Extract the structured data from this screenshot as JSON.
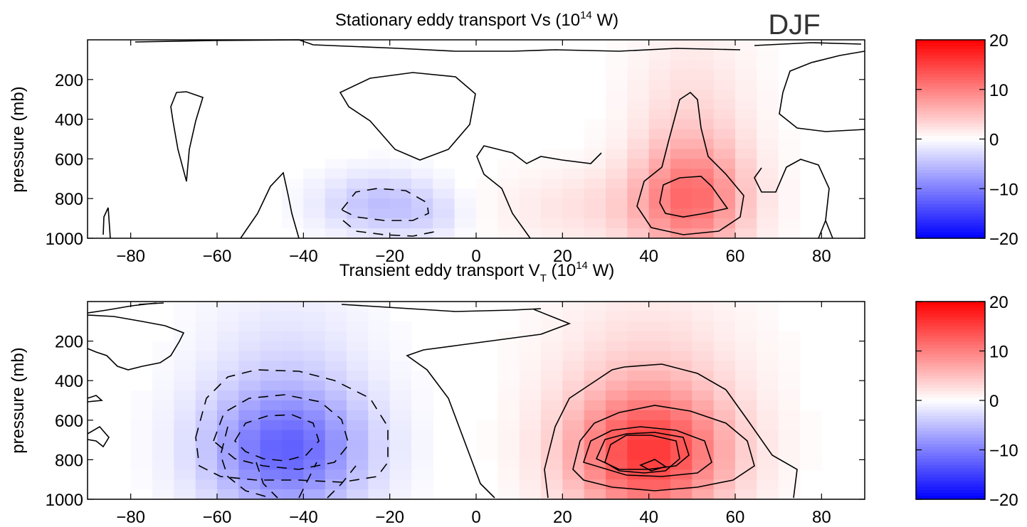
{
  "figure_label": "DJF",
  "colormap": {
    "negative": "#0000ff",
    "zero": "#ffffff",
    "positive": "#ff0000"
  },
  "chart_data": [
    {
      "type": "heatmap",
      "title_main": "Stationary eddy transport Vs (10",
      "title_sup": "14",
      "title_end": " W)",
      "ylabel": "pressure (mb)",
      "xlim": [
        -90,
        90
      ],
      "ylim": [
        0,
        1000
      ],
      "y_inverted": true,
      "xticks": [
        -80,
        -60,
        -40,
        -20,
        0,
        20,
        40,
        60,
        80
      ],
      "yticks": [
        200,
        400,
        600,
        800,
        1000
      ],
      "colorbar": {
        "min": -20,
        "max": 20,
        "ticks": [
          20,
          10,
          0,
          -10,
          -20
        ]
      },
      "blobs": [
        {
          "lat": 50,
          "p": 800,
          "sx": 9,
          "sy": 210,
          "amp": 10
        },
        {
          "lat": 50,
          "p": 350,
          "sx": 10,
          "sy": 300,
          "amp": 2.5
        },
        {
          "lat": 30,
          "p": 850,
          "sx": 18,
          "sy": 140,
          "amp": 2.5
        },
        {
          "lat": -22,
          "p": 830,
          "sx": 10,
          "sy": 110,
          "amp": -5
        },
        {
          "lat": -10,
          "p": 900,
          "sx": 6,
          "sy": 80,
          "amp": -1.5
        }
      ]
    },
    {
      "type": "heatmap",
      "title_main": "Transient eddy transport V",
      "title_sub": "T",
      "title_mid": " (10",
      "title_sup": "14",
      "title_end": " W)",
      "ylabel": "pressure (mb)",
      "xlim": [
        -90,
        90
      ],
      "ylim": [
        0,
        1000
      ],
      "y_inverted": true,
      "xticks": [
        -80,
        -60,
        -40,
        -20,
        0,
        20,
        40,
        60,
        80
      ],
      "yticks": [
        200,
        400,
        600,
        800,
        1000
      ],
      "colorbar": {
        "min": -20,
        "max": 20,
        "ticks": [
          20,
          10,
          0,
          -10,
          -20
        ]
      },
      "blobs": [
        {
          "lat": 40,
          "p": 780,
          "sx": 13,
          "sy": 230,
          "amp": 14
        },
        {
          "lat": 40,
          "p": 400,
          "sx": 16,
          "sy": 350,
          "amp": 3
        },
        {
          "lat": -44,
          "p": 760,
          "sx": 13,
          "sy": 220,
          "amp": -11
        },
        {
          "lat": -44,
          "p": 400,
          "sx": 14,
          "sy": 350,
          "amp": -2.5
        }
      ]
    }
  ]
}
